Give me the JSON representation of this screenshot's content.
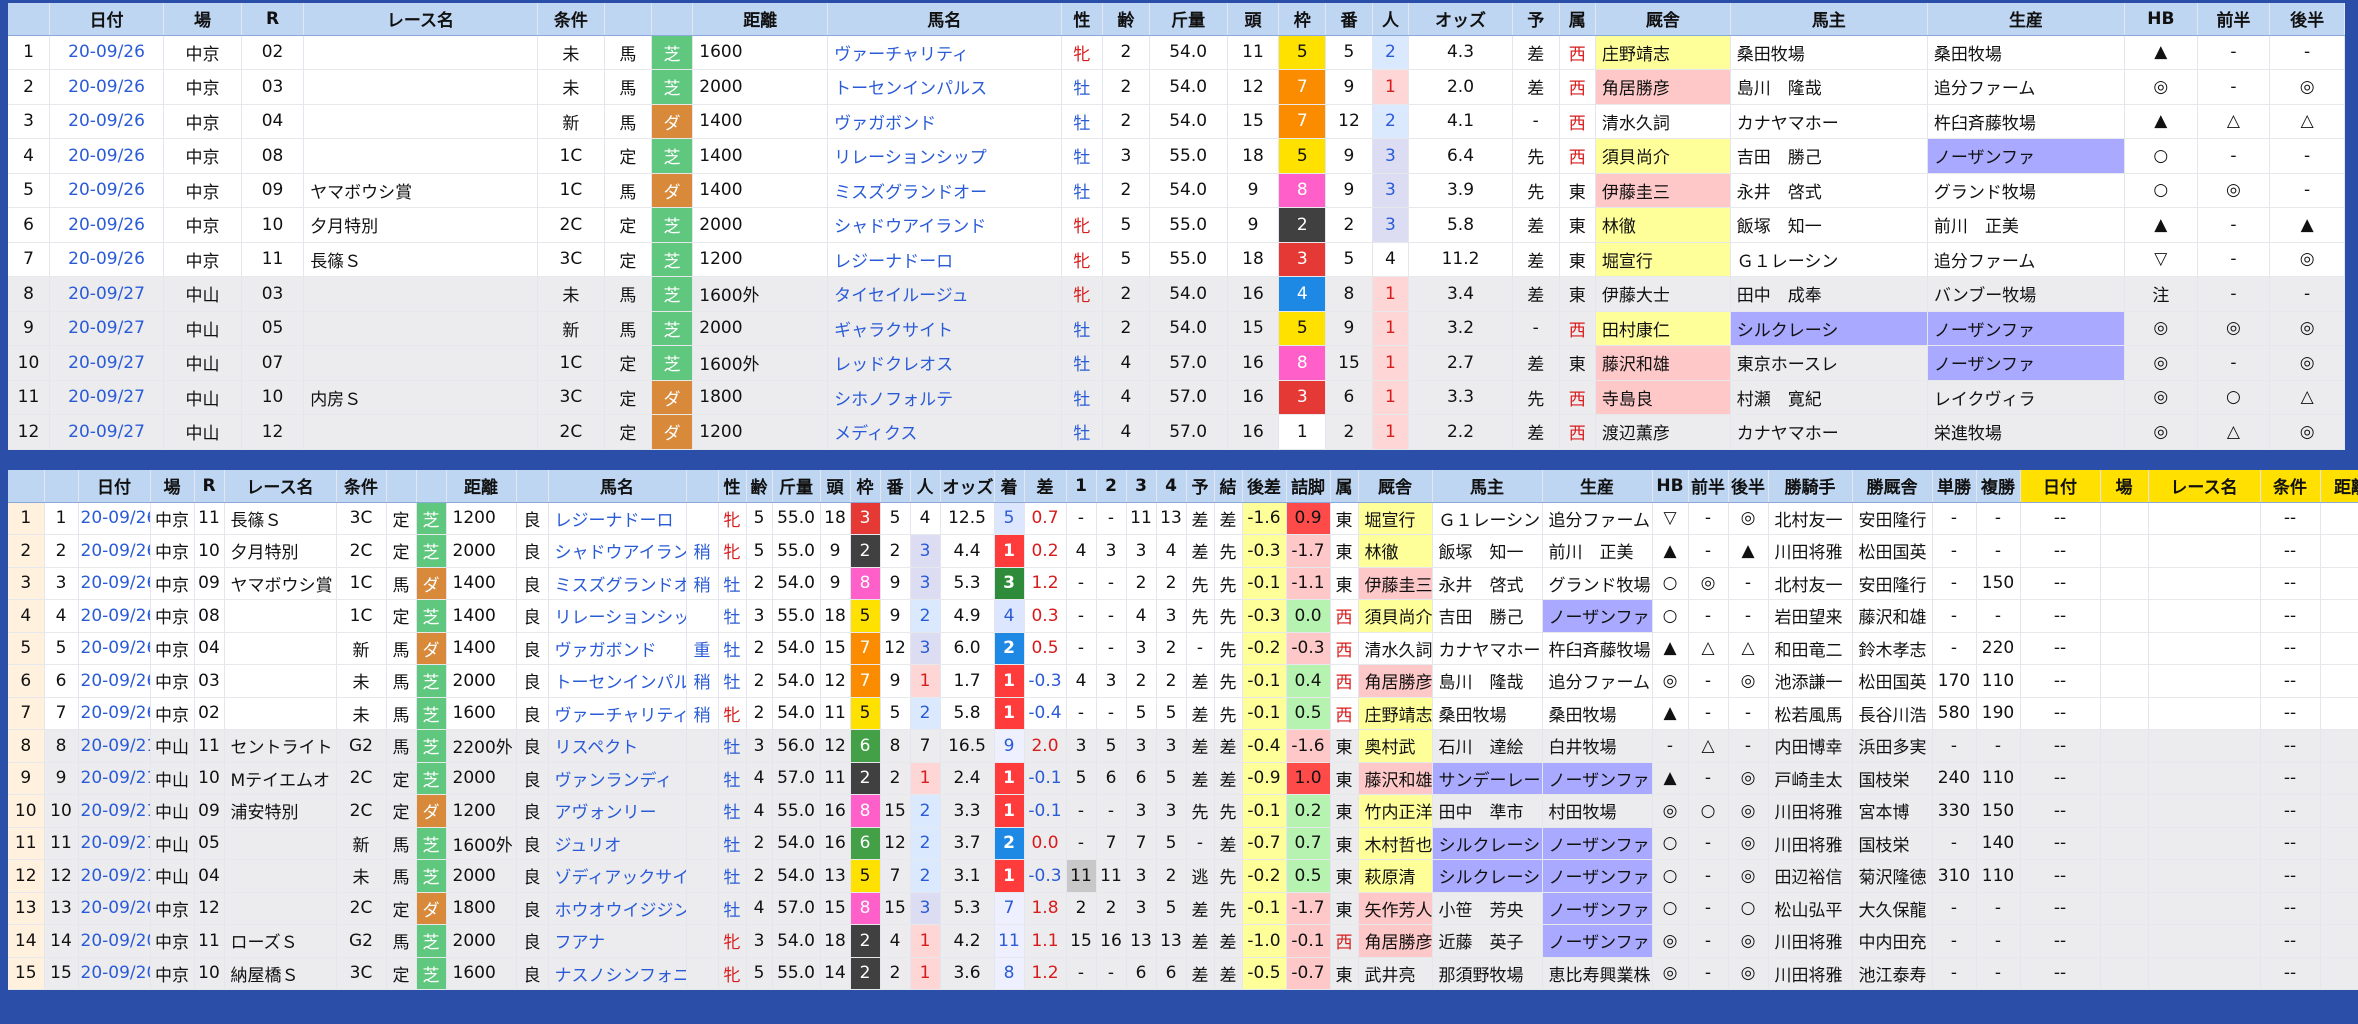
{
  "top": {
    "headers": [
      "",
      "日付",
      "場",
      "R",
      "レース名",
      "条件",
      "",
      "",
      "距離",
      "馬名",
      "性",
      "齢",
      "斤量",
      "頭",
      "枠",
      "番",
      "人",
      "オッズ",
      "予",
      "属",
      "厩舎",
      "馬主",
      "生産",
      "HB",
      "前半",
      "後半"
    ],
    "rows": [
      [
        "1",
        "20-09/26",
        "中京",
        "02",
        "",
        "未",
        "馬",
        "芝",
        "1600",
        "ヴァーチャリティ",
        "牝",
        "2",
        "54.0",
        "11",
        "5",
        "5",
        "2",
        "4.3",
        "差",
        "西",
        "庄野靖志",
        "桑田牧場",
        "桑田牧場",
        "▲",
        "-",
        "-"
      ],
      [
        "2",
        "20-09/26",
        "中京",
        "03",
        "",
        "未",
        "馬",
        "芝",
        "2000",
        "トーセンインパルス",
        "牡",
        "2",
        "54.0",
        "12",
        "7",
        "9",
        "1",
        "2.0",
        "差",
        "西",
        "角居勝彦",
        "島川　隆哉",
        "追分ファーム",
        "◎",
        "-",
        "◎"
      ],
      [
        "3",
        "20-09/26",
        "中京",
        "04",
        "",
        "新",
        "馬",
        "ダ",
        "1400",
        "ヴァガボンド",
        "牡",
        "2",
        "54.0",
        "15",
        "7",
        "12",
        "2",
        "4.1",
        "-",
        "西",
        "清水久詞",
        "カナヤマホー",
        "杵臼斉藤牧場",
        "▲",
        "△",
        "△"
      ],
      [
        "4",
        "20-09/26",
        "中京",
        "08",
        "",
        "1C",
        "定",
        "芝",
        "1400",
        "リレーションシップ",
        "牡",
        "3",
        "55.0",
        "18",
        "5",
        "9",
        "3",
        "6.4",
        "先",
        "西",
        "須貝尚介",
        "吉田　勝己",
        "ノーザンファ",
        "○",
        "-",
        "-"
      ],
      [
        "5",
        "20-09/26",
        "中京",
        "09",
        "ヤマボウシ賞",
        "1C",
        "馬",
        "ダ",
        "1400",
        "ミスズグランドオー",
        "牡",
        "2",
        "54.0",
        "9",
        "8",
        "9",
        "3",
        "3.9",
        "先",
        "東",
        "伊藤圭三",
        "永井　啓式",
        "グランド牧場",
        "○",
        "◎",
        "-"
      ],
      [
        "6",
        "20-09/26",
        "中京",
        "10",
        "夕月特別",
        "2C",
        "定",
        "芝",
        "2000",
        "シャドウアイランド",
        "牝",
        "5",
        "55.0",
        "9",
        "2",
        "2",
        "3",
        "5.8",
        "差",
        "東",
        "林徹",
        "飯塚　知一",
        "前川　正美",
        "▲",
        "-",
        "▲"
      ],
      [
        "7",
        "20-09/26",
        "中京",
        "11",
        "長篠Ｓ",
        "3C",
        "定",
        "芝",
        "1200",
        "レジーナドーロ",
        "牝",
        "5",
        "55.0",
        "18",
        "3",
        "5",
        "4",
        "11.2",
        "差",
        "東",
        "堀宣行",
        "Ｇ１レーシン",
        "追分ファーム",
        "▽",
        "-",
        "◎"
      ],
      [
        "8",
        "20-09/27",
        "中山",
        "03",
        "",
        "未",
        "馬",
        "芝",
        "1600外",
        "タイセイルージュ",
        "牝",
        "2",
        "54.0",
        "16",
        "4",
        "8",
        "1",
        "3.4",
        "差",
        "東",
        "伊藤大士",
        "田中　成奉",
        "バンブー牧場",
        "注",
        "-",
        "-"
      ],
      [
        "9",
        "20-09/27",
        "中山",
        "05",
        "",
        "新",
        "馬",
        "芝",
        "2000",
        "ギャラクサイト",
        "牡",
        "2",
        "54.0",
        "15",
        "5",
        "9",
        "1",
        "3.2",
        "-",
        "西",
        "田村康仁",
        "シルクレーシ",
        "ノーザンファ",
        "◎",
        "◎",
        "◎"
      ],
      [
        "10",
        "20-09/27",
        "中山",
        "07",
        "",
        "1C",
        "定",
        "芝",
        "1600外",
        "レッドクレオス",
        "牡",
        "4",
        "57.0",
        "16",
        "8",
        "15",
        "1",
        "2.7",
        "差",
        "東",
        "藤沢和雄",
        "東京ホースレ",
        "ノーザンファ",
        "◎",
        "-",
        "◎"
      ],
      [
        "11",
        "20-09/27",
        "中山",
        "10",
        "内房Ｓ",
        "3C",
        "定",
        "ダ",
        "1800",
        "シホノフォルテ",
        "牡",
        "4",
        "57.0",
        "16",
        "3",
        "6",
        "1",
        "3.3",
        "先",
        "西",
        "寺島良",
        "村瀬　寛紀",
        "レイクヴィラ",
        "◎",
        "○",
        "△"
      ],
      [
        "12",
        "20-09/27",
        "中山",
        "12",
        "",
        "2C",
        "定",
        "ダ",
        "1200",
        "メディクス",
        "牡",
        "4",
        "57.0",
        "16",
        "1",
        "2",
        "1",
        "2.2",
        "差",
        "西",
        "渡辺薫彦",
        "カナヤマホー",
        "栄進牧場",
        "◎",
        "△",
        "◎"
      ]
    ]
  },
  "bottom": {
    "headers": [
      "",
      "",
      "日付",
      "場",
      "R",
      "レース名",
      "条件",
      "",
      "",
      "距離",
      "",
      "馬名",
      "",
      "性",
      "齢",
      "斤量",
      "頭",
      "枠",
      "番",
      "人",
      "オッズ",
      "着",
      "差",
      "1",
      "2",
      "3",
      "4",
      "予",
      "結",
      "後差",
      "詰脚",
      "属",
      "厩舎",
      "馬主",
      "生産",
      "HB",
      "前半",
      "後半",
      "勝騎手",
      "勝厩舎",
      "単勝",
      "複勝",
      "日付",
      "場",
      "レース名",
      "条件",
      "距離"
    ],
    "rows": [
      [
        "1",
        "1",
        "20-09/26",
        "中京",
        "11",
        "長篠Ｓ",
        "3C",
        "定",
        "芝",
        "1200",
        "良",
        "レジーナドーロ",
        "",
        "牝",
        "5",
        "55.0",
        "18",
        "3",
        "5",
        "4",
        "12.5",
        "5",
        "0.7",
        "-",
        "-",
        "11",
        "13",
        "差",
        "差",
        "-1.6",
        "0.9",
        "東",
        "堀宣行",
        "Ｇ１レーシン",
        "追分ファーム",
        "▽",
        "-",
        "◎",
        "北村友一",
        "安田隆行",
        "-",
        "-",
        "--",
        "",
        "",
        "--",
        ""
      ],
      [
        "2",
        "2",
        "20-09/26",
        "中京",
        "10",
        "夕月特別",
        "2C",
        "定",
        "芝",
        "2000",
        "良",
        "シャドウアイランド",
        "稍",
        "牝",
        "5",
        "55.0",
        "9",
        "2",
        "2",
        "3",
        "4.4",
        "1",
        "0.2",
        "4",
        "3",
        "3",
        "4",
        "差",
        "先",
        "-0.3",
        "-1.7",
        "東",
        "林徹",
        "飯塚　知一",
        "前川　正美",
        "▲",
        "-",
        "▲",
        "川田将雅",
        "松田国英",
        "-",
        "-",
        "--",
        "",
        "",
        "--",
        ""
      ],
      [
        "3",
        "3",
        "20-09/26",
        "中京",
        "09",
        "ヤマボウシ賞",
        "1C",
        "馬",
        "ダ",
        "1400",
        "良",
        "ミスズグランドオー",
        "稍",
        "牡",
        "2",
        "54.0",
        "9",
        "8",
        "9",
        "3",
        "5.3",
        "3",
        "1.2",
        "-",
        "-",
        "2",
        "2",
        "先",
        "先",
        "-0.1",
        "-1.1",
        "東",
        "伊藤圭三",
        "永井　啓式",
        "グランド牧場",
        "○",
        "◎",
        "-",
        "北村友一",
        "安田隆行",
        "-",
        "150",
        "--",
        "",
        "",
        "--",
        ""
      ],
      [
        "4",
        "4",
        "20-09/26",
        "中京",
        "08",
        "",
        "1C",
        "定",
        "芝",
        "1400",
        "良",
        "リレーションシップ",
        "",
        "牡",
        "3",
        "55.0",
        "18",
        "5",
        "9",
        "2",
        "4.9",
        "4",
        "0.3",
        "-",
        "-",
        "4",
        "3",
        "先",
        "先",
        "-0.3",
        "0.0",
        "西",
        "須貝尚介",
        "吉田　勝己",
        "ノーザンファ",
        "○",
        "-",
        "-",
        "岩田望来",
        "藤沢和雄",
        "-",
        "-",
        "--",
        "",
        "",
        "--",
        ""
      ],
      [
        "5",
        "5",
        "20-09/26",
        "中京",
        "04",
        "",
        "新",
        "馬",
        "ダ",
        "1400",
        "良",
        "ヴァガボンド",
        "重",
        "牡",
        "2",
        "54.0",
        "15",
        "7",
        "12",
        "3",
        "6.0",
        "2",
        "0.5",
        "-",
        "-",
        "3",
        "2",
        "-",
        "先",
        "-0.2",
        "-0.3",
        "西",
        "清水久詞",
        "カナヤマホー",
        "杵臼斉藤牧場",
        "▲",
        "△",
        "△",
        "和田竜二",
        "鈴木孝志",
        "-",
        "220",
        "--",
        "",
        "",
        "--",
        ""
      ],
      [
        "6",
        "6",
        "20-09/26",
        "中京",
        "03",
        "",
        "未",
        "馬",
        "芝",
        "2000",
        "良",
        "トーセンインパルス",
        "稍",
        "牡",
        "2",
        "54.0",
        "12",
        "7",
        "9",
        "1",
        "1.7",
        "1",
        "-0.3",
        "4",
        "3",
        "2",
        "2",
        "差",
        "先",
        "-0.1",
        "0.4",
        "西",
        "角居勝彦",
        "島川　隆哉",
        "追分ファーム",
        "◎",
        "-",
        "◎",
        "池添謙一",
        "松田国英",
        "170",
        "110",
        "--",
        "",
        "",
        "--",
        ""
      ],
      [
        "7",
        "7",
        "20-09/26",
        "中京",
        "02",
        "",
        "未",
        "馬",
        "芝",
        "1600",
        "良",
        "ヴァーチャリティ",
        "稍",
        "牝",
        "2",
        "54.0",
        "11",
        "5",
        "5",
        "2",
        "5.8",
        "1",
        "-0.4",
        "-",
        "-",
        "5",
        "5",
        "差",
        "先",
        "-0.1",
        "0.5",
        "西",
        "庄野靖志",
        "桑田牧場",
        "桑田牧場",
        "▲",
        "-",
        "-",
        "松若風馬",
        "長谷川浩",
        "580",
        "190",
        "--",
        "",
        "",
        "--",
        ""
      ],
      [
        "8",
        "8",
        "20-09/21",
        "中山",
        "11",
        "セントライト",
        "G2",
        "馬",
        "芝",
        "2200外",
        "良",
        "リスペクト",
        "",
        "牡",
        "3",
        "56.0",
        "12",
        "6",
        "8",
        "7",
        "16.5",
        "9",
        "2.0",
        "3",
        "5",
        "3",
        "3",
        "差",
        "差",
        "-0.4",
        "-1.6",
        "東",
        "奥村武",
        "石川　達絵",
        "白井牧場",
        "-",
        "△",
        "-",
        "内田博幸",
        "浜田多実",
        "-",
        "-",
        "--",
        "",
        "",
        "--",
        ""
      ],
      [
        "9",
        "9",
        "20-09/21",
        "中山",
        "10",
        "Mテイエムオ",
        "2C",
        "定",
        "芝",
        "2000",
        "良",
        "ヴァンランディ",
        "",
        "牡",
        "4",
        "57.0",
        "11",
        "2",
        "2",
        "1",
        "2.4",
        "1",
        "-0.1",
        "5",
        "6",
        "6",
        "5",
        "差",
        "差",
        "-0.9",
        "1.0",
        "東",
        "藤沢和雄",
        "サンデーレー",
        "ノーザンファ",
        "▲",
        "-",
        "◎",
        "戸崎圭太",
        "国枝栄",
        "240",
        "110",
        "--",
        "",
        "",
        "--",
        ""
      ],
      [
        "10",
        "10",
        "20-09/21",
        "中山",
        "09",
        "浦安特別",
        "2C",
        "定",
        "ダ",
        "1200",
        "良",
        "アヴォンリー",
        "",
        "牡",
        "4",
        "55.0",
        "16",
        "8",
        "15",
        "2",
        "3.3",
        "1",
        "-0.1",
        "-",
        "-",
        "3",
        "3",
        "先",
        "先",
        "-0.1",
        "0.2",
        "東",
        "竹内正洋",
        "田中　準市",
        "村田牧場",
        "◎",
        "○",
        "◎",
        "川田将雅",
        "宮本博",
        "330",
        "150",
        "--",
        "",
        "",
        "--",
        ""
      ],
      [
        "11",
        "11",
        "20-09/21",
        "中山",
        "05",
        "",
        "新",
        "馬",
        "芝",
        "1600外",
        "良",
        "ジュリオ",
        "",
        "牡",
        "2",
        "54.0",
        "16",
        "6",
        "12",
        "2",
        "3.7",
        "2",
        "0.0",
        "-",
        "7",
        "7",
        "5",
        "-",
        "差",
        "-0.7",
        "0.7",
        "東",
        "木村哲也",
        "シルクレーシ",
        "ノーザンファ",
        "○",
        "-",
        "◎",
        "川田将雅",
        "国枝栄",
        "-",
        "140",
        "--",
        "",
        "",
        "--",
        ""
      ],
      [
        "12",
        "12",
        "20-09/21",
        "中山",
        "04",
        "",
        "未",
        "馬",
        "芝",
        "2000",
        "良",
        "ゾディアックサイン",
        "",
        "牡",
        "2",
        "54.0",
        "13",
        "5",
        "7",
        "2",
        "3.1",
        "1",
        "-0.3",
        "11",
        "11",
        "3",
        "2",
        "逃",
        "先",
        "-0.2",
        "0.5",
        "東",
        "萩原清",
        "シルクレーシ",
        "ノーザンファ",
        "○",
        "-",
        "◎",
        "田辺裕信",
        "菊沢隆徳",
        "310",
        "110",
        "--",
        "",
        "",
        "--",
        ""
      ],
      [
        "13",
        "13",
        "20-09/20",
        "中京",
        "12",
        "",
        "2C",
        "定",
        "ダ",
        "1800",
        "良",
        "ホウオウイジジン",
        "",
        "牡",
        "4",
        "57.0",
        "15",
        "8",
        "15",
        "3",
        "5.3",
        "7",
        "1.8",
        "2",
        "2",
        "3",
        "5",
        "差",
        "先",
        "-0.1",
        "-1.7",
        "東",
        "矢作芳人",
        "小笹　芳央",
        "ノーザンファ",
        "○",
        "-",
        "○",
        "松山弘平",
        "大久保龍",
        "-",
        "-",
        "--",
        "",
        "",
        "--",
        ""
      ],
      [
        "14",
        "14",
        "20-09/20",
        "中京",
        "11",
        "ローズＳ",
        "G2",
        "馬",
        "芝",
        "2000",
        "良",
        "フアナ",
        "",
        "牝",
        "3",
        "54.0",
        "18",
        "2",
        "4",
        "1",
        "4.2",
        "11",
        "1.1",
        "15",
        "16",
        "13",
        "13",
        "差",
        "差",
        "-1.0",
        "-0.1",
        "西",
        "角居勝彦",
        "近藤　英子",
        "ノーザンファ",
        "◎",
        "-",
        "◎",
        "川田将雅",
        "中内田充",
        "-",
        "-",
        "--",
        "",
        "",
        "--",
        ""
      ],
      [
        "15",
        "15",
        "20-09/20",
        "中京",
        "10",
        "納屋橋Ｓ",
        "3C",
        "定",
        "芝",
        "1600",
        "良",
        "ナスノシンフォニー",
        "",
        "牝",
        "5",
        "55.0",
        "14",
        "2",
        "2",
        "1",
        "3.6",
        "8",
        "1.2",
        "-",
        "-",
        "6",
        "6",
        "差",
        "差",
        "-0.5",
        "-0.7",
        "東",
        "武井亮",
        "那須野牧場",
        "恵比寿興業株",
        "◎",
        "-",
        "◎",
        "川田将雅",
        "池江泰寿",
        "-",
        "-",
        "--",
        "",
        "",
        "--",
        ""
      ]
    ]
  }
}
